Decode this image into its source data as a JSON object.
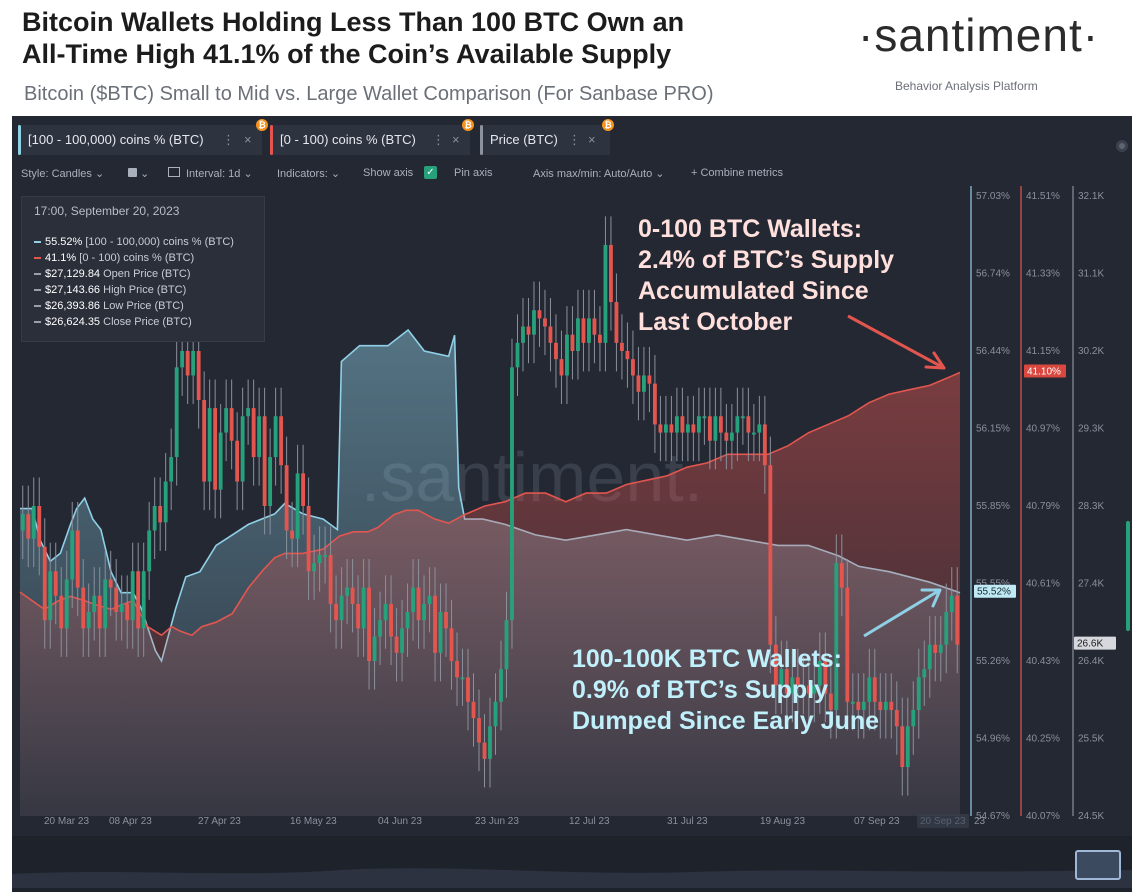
{
  "header": {
    "title_line1": "Bitcoin Wallets Holding Less Than 100 BTC Own an",
    "title_line2": "All-Time High 41.1% of the Coin’s Available Supply",
    "subtitle": "Bitcoin ($BTC) Small to Mid vs. Large Wallet Comparison (For Sanbase PRO)",
    "brand": "·santiment·",
    "tagline": "Behavior Analysis Platform"
  },
  "tabs": [
    {
      "label": "[100 - 100,000) coins % (BTC)",
      "color": "#8fd0e6",
      "dots": "⋮",
      "close": "×",
      "coin": "₿"
    },
    {
      "label": "[0 - 100) coins % (BTC)",
      "color": "#e2564f",
      "dots": "⋮",
      "close": "×",
      "coin": "₿"
    },
    {
      "label": "Price (BTC)",
      "color": "#8d929c",
      "dots": "⋮",
      "close": "×",
      "coin": "₿"
    }
  ],
  "toolbar": {
    "style": "Style: Candles",
    "interval": "Interval: 1d",
    "indicators": "Indicators:",
    "show_axis": "Show axis",
    "pin_axis": "Pin axis",
    "axis_minmax": "Axis max/min: Auto/Auto",
    "combine": "+ Combine metrics",
    "check": "✓",
    "chevron": "⌄"
  },
  "legend": {
    "date": "17:00, September 20, 2023",
    "rows": [
      {
        "value": "55.52%",
        "label": "[100 - 100,000) coins % (BTC)",
        "color": "#8fd0e6"
      },
      {
        "value": "41.1%",
        "label": "[0 - 100) coins % (BTC)",
        "color": "#e2564f"
      },
      {
        "value": "$27,129.84",
        "label": "Open Price (BTC)",
        "color": "#9aa0aa"
      },
      {
        "value": "$27,143.66",
        "label": "High Price (BTC)",
        "color": "#9aa0aa"
      },
      {
        "value": "$26,393.86",
        "label": "Low Price (BTC)",
        "color": "#9aa0aa"
      },
      {
        "value": "$26,624.35",
        "label": "Close Price (BTC)",
        "color": "#9aa0aa"
      }
    ]
  },
  "annotations": {
    "small": {
      "lines": [
        "0-100 BTC Wallets:",
        "2.4% of BTC’s Supply",
        "Accumulated Since",
        "Last October"
      ],
      "color": "#ffe0dc"
    },
    "large": {
      "lines": [
        "100-100K BTC Wallets:",
        "0.9% of BTC’s Supply",
        "Dumped Since Early June"
      ],
      "color": "#bff0fb"
    }
  },
  "watermark": ".santiment.",
  "colors": {
    "bg": "#242833",
    "large_wallets": "#8fd0e6",
    "small_wallets": "#e2564f",
    "candle_up": "#26a17b",
    "candle_down": "#e2564f",
    "axis_text": "#8a909c"
  },
  "chart_data": {
    "type": "candlestick+area",
    "x_labels": [
      "20 Mar 23",
      "08 Apr 23",
      "27 Apr 23",
      "16 May 23",
      "04 Jun 23",
      "23 Jun 23",
      "12 Jul 23",
      "31 Jul 23",
      "19 Aug 23",
      "07 Sep 23",
      "20 Sep 23"
    ],
    "x_label_edge": "23",
    "axes": {
      "large_pct": {
        "ticks": [
          "57.03%",
          "56.74%",
          "56.44%",
          "56.15%",
          "55.85%",
          "55.55%",
          "55.26%",
          "54.96%",
          "54.67%"
        ],
        "range": [
          54.67,
          57.03
        ],
        "current": "55.52%"
      },
      "small_pct": {
        "ticks": [
          "41.51%",
          "41.33%",
          "41.15%",
          "40.97%",
          "40.79%",
          "40.61%",
          "40.43%",
          "40.25%",
          "40.07%"
        ],
        "range": [
          40.07,
          41.51
        ],
        "current": "41.10%"
      },
      "price": {
        "ticks": [
          "32.1K",
          "31.1K",
          "30.2K",
          "29.3K",
          "28.3K",
          "27.4K",
          "26.4K",
          "25.5K",
          "24.5K"
        ],
        "range": [
          24.5,
          32.1
        ],
        "current": "26.6K"
      }
    },
    "series": [
      {
        "name": "[100 - 100,000) coins % (BTC)",
        "unit": "%",
        "points": [
          [
            0,
            55.84
          ],
          [
            12,
            55.84
          ],
          [
            20,
            55.72
          ],
          [
            30,
            55.64
          ],
          [
            40,
            55.67
          ],
          [
            50,
            55.78
          ],
          [
            56,
            55.84
          ],
          [
            64,
            55.88
          ],
          [
            72,
            55.8
          ],
          [
            80,
            55.76
          ],
          [
            90,
            55.6
          ],
          [
            100,
            55.52
          ],
          [
            112,
            55.52
          ],
          [
            120,
            55.46
          ],
          [
            134,
            55.3
          ],
          [
            140,
            55.26
          ],
          [
            154,
            55.46
          ],
          [
            164,
            55.58
          ],
          [
            178,
            55.6
          ],
          [
            194,
            55.7
          ],
          [
            210,
            55.74
          ],
          [
            226,
            55.78
          ],
          [
            252,
            55.82
          ],
          [
            262,
            55.86
          ],
          [
            280,
            55.82
          ],
          [
            300,
            55.8
          ],
          [
            314,
            55.76
          ],
          [
            318,
            56.4
          ],
          [
            336,
            56.46
          ],
          [
            364,
            56.46
          ],
          [
            384,
            56.52
          ],
          [
            400,
            56.44
          ],
          [
            424,
            56.42
          ],
          [
            430,
            56.5
          ],
          [
            434,
            55.92
          ],
          [
            440,
            55.8
          ],
          [
            458,
            55.8
          ],
          [
            480,
            55.78
          ],
          [
            510,
            55.74
          ],
          [
            540,
            55.72
          ],
          [
            570,
            55.74
          ],
          [
            600,
            55.76
          ],
          [
            630,
            55.74
          ],
          [
            660,
            55.72
          ],
          [
            690,
            55.74
          ],
          [
            720,
            55.72
          ],
          [
            750,
            55.7
          ],
          [
            780,
            55.7
          ],
          [
            810,
            55.66
          ],
          [
            830,
            55.62
          ],
          [
            860,
            55.6
          ],
          [
            900,
            55.56
          ],
          [
            930,
            55.52
          ]
        ]
      },
      {
        "name": "[0 - 100) coins % (BTC)",
        "unit": "%",
        "points": [
          [
            0,
            40.59
          ],
          [
            12,
            40.57
          ],
          [
            24,
            40.55
          ],
          [
            38,
            40.57
          ],
          [
            50,
            40.58
          ],
          [
            64,
            40.57
          ],
          [
            76,
            40.56
          ],
          [
            90,
            40.55
          ],
          [
            100,
            40.56
          ],
          [
            112,
            40.57
          ],
          [
            126,
            40.51
          ],
          [
            140,
            40.49
          ],
          [
            150,
            40.51
          ],
          [
            158,
            40.5
          ],
          [
            170,
            40.49
          ],
          [
            180,
            40.51
          ],
          [
            194,
            40.52
          ],
          [
            210,
            40.54
          ],
          [
            226,
            40.6
          ],
          [
            240,
            40.64
          ],
          [
            252,
            40.67
          ],
          [
            262,
            40.68
          ],
          [
            280,
            40.68
          ],
          [
            300,
            40.69
          ],
          [
            316,
            40.72
          ],
          [
            330,
            40.73
          ],
          [
            344,
            40.73
          ],
          [
            354,
            40.74
          ],
          [
            370,
            40.77
          ],
          [
            382,
            40.78
          ],
          [
            394,
            40.78
          ],
          [
            410,
            40.76
          ],
          [
            424,
            40.75
          ],
          [
            440,
            40.77
          ],
          [
            460,
            40.79
          ],
          [
            480,
            40.8
          ],
          [
            500,
            40.82
          ],
          [
            520,
            40.82
          ],
          [
            540,
            40.8
          ],
          [
            560,
            40.82
          ],
          [
            580,
            40.82
          ],
          [
            600,
            40.84
          ],
          [
            620,
            40.85
          ],
          [
            640,
            40.86
          ],
          [
            660,
            40.88
          ],
          [
            680,
            40.89
          ],
          [
            700,
            40.91
          ],
          [
            720,
            40.91
          ],
          [
            740,
            40.91
          ],
          [
            760,
            40.93
          ],
          [
            780,
            40.96
          ],
          [
            800,
            40.98
          ],
          [
            820,
            41.0
          ],
          [
            840,
            41.03
          ],
          [
            860,
            41.05
          ],
          [
            880,
            41.06
          ],
          [
            900,
            41.07
          ],
          [
            920,
            41.09
          ],
          [
            930,
            41.1
          ]
        ]
      },
      {
        "name": "Price (BTC)",
        "unit": "K USD",
        "candles_close": [
          28.2,
          27.9,
          28.3,
          27.8,
          26.9,
          27.5,
          27.2,
          26.8,
          27.4,
          28.0,
          27.3,
          26.8,
          27.0,
          27.2,
          26.8,
          27.4,
          27.3,
          27.0,
          27.1,
          26.9,
          27.5,
          26.8,
          27.5,
          28.0,
          28.3,
          28.1,
          28.6,
          28.9,
          30.0,
          30.2,
          29.9,
          30.2,
          29.6,
          28.6,
          29.5,
          28.5,
          29.2,
          29.5,
          29.1,
          28.6,
          29.4,
          29.5,
          28.9,
          29.4,
          28.3,
          28.9,
          29.4,
          28.8,
          28.0,
          27.9,
          28.7,
          28.3,
          27.5,
          27.6,
          27.7,
          27.7,
          27.1,
          26.9,
          27.2,
          27.3,
          27.1,
          26.8,
          27.3,
          26.4,
          26.7,
          26.9,
          27.1,
          26.7,
          26.5,
          26.8,
          27.0,
          27.3,
          26.9,
          27.1,
          27.2,
          26.5,
          27.0,
          26.8,
          26.4,
          26.2,
          26.2,
          25.9,
          25.7,
          25.4,
          25.2,
          25.6,
          25.9,
          26.3,
          26.9,
          30.0,
          30.3,
          30.5,
          30.4,
          30.7,
          30.6,
          30.5,
          30.3,
          30.1,
          29.9,
          30.4,
          30.2,
          30.6,
          30.3,
          30.6,
          30.4,
          30.3,
          31.5,
          30.8,
          30.3,
          30.2,
          30.1,
          29.9,
          29.7,
          29.9,
          29.8,
          29.3,
          29.2,
          29.3,
          29.2,
          29.4,
          29.2,
          29.3,
          29.2,
          29.4,
          29.4,
          29.1,
          29.4,
          29.2,
          29.1,
          29.2,
          29.4,
          29.4,
          29.2,
          29.2,
          29.3,
          28.8,
          26.6,
          26.1,
          26.3,
          26.0,
          26.2,
          26.1,
          26.1,
          26.0,
          26.1,
          26.4,
          26.0,
          25.8,
          27.6,
          27.3,
          25.9,
          25.9,
          25.8,
          25.9,
          26.2,
          25.9,
          25.8,
          25.9,
          25.8,
          25.6,
          25.1,
          25.6,
          25.8,
          26.2,
          26.3,
          26.6,
          26.5,
          26.6,
          27.0,
          27.2,
          26.6
        ]
      }
    ]
  }
}
